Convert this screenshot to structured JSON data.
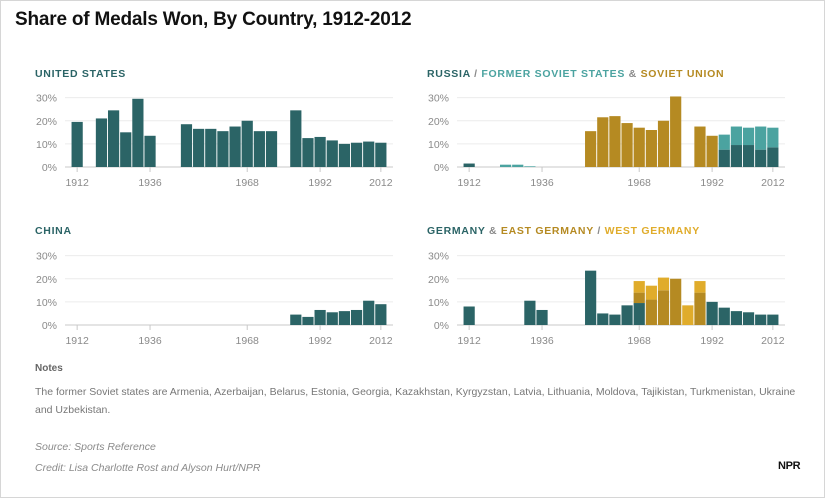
{
  "page": {
    "title": "Share of Medals Won, By Country, 1912-2012",
    "notes_heading": "Notes",
    "notes_text": "The former Soviet states are Armenia, Azerbaijan, Belarus, Estonia, Georgia, Kazakhstan, Kyrgyzstan, Latvia, Lithuania, Moldova, Tajikistan, Turkmenistan, Ukraine and Uzbekistan.",
    "source": "Source: Sports Reference",
    "credit": "Credit: Lisa Charlotte Rost and Alyson Hurt/NPR",
    "logo": "NPR"
  },
  "panels": {
    "us": {
      "title": [
        {
          "text": "UNITED STATES",
          "color": "#2b6466"
        }
      ]
    },
    "russia": {
      "title": [
        {
          "text": "RUSSIA",
          "color": "#2b6466"
        },
        {
          "text": " / ",
          "color": "#8a8a8a"
        },
        {
          "text": "FORMER SOVIET STATES",
          "color": "#4ba3a0"
        },
        {
          "text": " & ",
          "color": "#8a8a8a"
        },
        {
          "text": "SOVIET UNION",
          "color": "#b58a22"
        }
      ]
    },
    "china": {
      "title": [
        {
          "text": "CHINA",
          "color": "#2b6466"
        }
      ]
    },
    "germany": {
      "title": [
        {
          "text": "GERMANY",
          "color": "#2b6466"
        },
        {
          "text": " & ",
          "color": "#8a8a8a"
        },
        {
          "text": "EAST GERMANY",
          "color": "#b58a22"
        },
        {
          "text": " / ",
          "color": "#8a8a8a"
        },
        {
          "text": "WEST GERMANY",
          "color": "#e0ac2b"
        }
      ]
    }
  },
  "chart_data": [
    {
      "id": "us",
      "type": "bar",
      "stacked": true,
      "x": [
        1912,
        1920,
        1924,
        1928,
        1932,
        1936,
        1948,
        1952,
        1956,
        1960,
        1964,
        1968,
        1972,
        1976,
        1984,
        1988,
        1992,
        1996,
        2000,
        2004,
        2008,
        2012
      ],
      "series": [
        {
          "name": "",
          "color": "#2b6466",
          "values": [
            19.5,
            21,
            24.5,
            15,
            29.5,
            13.5,
            18.5,
            16.5,
            16.5,
            15.5,
            17.5,
            20,
            15.5,
            15.5,
            24.5,
            12.5,
            13,
            11.5,
            10,
            10.5,
            11,
            10.5
          ]
        }
      ],
      "xticks": [
        1912,
        1936,
        1968,
        1992,
        2012
      ],
      "yticks": [
        0,
        10,
        20,
        30
      ],
      "ytick_labels": [
        "0%",
        "10%",
        "20%",
        "30%"
      ],
      "ylim": [
        0,
        32
      ],
      "xlim": [
        1908,
        2016
      ]
    },
    {
      "id": "russia",
      "type": "bar",
      "stacked": true,
      "x": [
        1912,
        1920,
        1924,
        1928,
        1932,
        1936,
        1952,
        1956,
        1960,
        1964,
        1968,
        1972,
        1976,
        1980,
        1988,
        1992,
        1996,
        2000,
        2004,
        2008,
        2012
      ],
      "series": [
        {
          "name": "RUSSIA",
          "color": "#2b6466",
          "values": [
            1.5,
            0,
            0,
            0,
            0,
            0,
            0,
            0,
            0,
            0,
            0,
            0,
            0,
            0,
            0,
            0,
            7.5,
            9.5,
            9.5,
            7.5,
            8.5
          ]
        },
        {
          "name": "FORMER SOVIET STATES",
          "color": "#4ba3a0",
          "values": [
            0,
            0,
            1,
            1,
            0.3,
            0,
            0,
            0,
            0,
            0,
            0,
            0,
            0,
            0,
            0,
            0,
            6.5,
            8,
            7.5,
            10,
            8.5
          ]
        },
        {
          "name": "SOVIET UNION",
          "color": "#b58a22",
          "values": [
            0,
            0,
            0,
            0,
            0,
            0,
            15.5,
            21.5,
            22,
            19,
            17,
            16,
            20,
            30.5,
            17.5,
            13.5,
            0,
            0,
            0,
            0,
            0
          ]
        }
      ],
      "xticks": [
        1912,
        1936,
        1968,
        1992,
        2012
      ],
      "yticks": [
        0,
        10,
        20,
        30
      ],
      "ytick_labels": [
        "0%",
        "10%",
        "20%",
        "30%"
      ],
      "ylim": [
        0,
        32
      ],
      "xlim": [
        1908,
        2016
      ]
    },
    {
      "id": "china",
      "type": "bar",
      "stacked": true,
      "x": [
        1984,
        1988,
        1992,
        1996,
        2000,
        2004,
        2008,
        2012
      ],
      "series": [
        {
          "name": "",
          "color": "#2b6466",
          "values": [
            4.5,
            3.5,
            6.5,
            5.5,
            6,
            6.5,
            10.5,
            9
          ]
        }
      ],
      "xticks": [
        1912,
        1936,
        1968,
        1992,
        2012
      ],
      "yticks": [
        0,
        10,
        20,
        30
      ],
      "ytick_labels": [
        "0%",
        "10%",
        "20%",
        "30%"
      ],
      "ylim": [
        0,
        32
      ],
      "xlim": [
        1908,
        2016
      ]
    },
    {
      "id": "germany",
      "type": "bar",
      "stacked": true,
      "x": [
        1912,
        1928,
        1932,
        1936,
        1952,
        1956,
        1960,
        1964,
        1968,
        1972,
        1976,
        1980,
        1984,
        1988,
        1992,
        1996,
        2000,
        2004,
        2008,
        2012
      ],
      "series": [
        {
          "name": "GERMANY",
          "color": "#2b6466",
          "values": [
            8,
            0,
            10.5,
            6.5,
            23.5,
            5,
            4.5,
            8.5,
            9.5,
            0,
            0,
            0,
            0,
            0,
            10,
            7.5,
            6,
            5.5,
            4.5,
            4.5
          ]
        },
        {
          "name": "EAST GERMANY",
          "color": "#b58a22",
          "values": [
            0,
            0,
            0,
            0,
            0,
            0,
            0,
            0,
            4.5,
            11,
            15,
            20,
            0,
            14,
            0,
            0,
            0,
            0,
            0,
            0
          ]
        },
        {
          "name": "WEST GERMANY",
          "color": "#e0ac2b",
          "values": [
            0,
            0,
            0,
            0,
            0,
            0,
            0,
            0,
            5,
            6,
            5.5,
            0,
            8.5,
            5,
            0,
            0,
            0,
            0,
            0,
            0
          ]
        }
      ],
      "xticks": [
        1912,
        1936,
        1968,
        1992,
        2012
      ],
      "yticks": [
        0,
        10,
        20,
        30
      ],
      "ytick_labels": [
        "0%",
        "10%",
        "20%",
        "30%"
      ],
      "ylim": [
        0,
        32
      ],
      "xlim": [
        1908,
        2016
      ]
    }
  ]
}
